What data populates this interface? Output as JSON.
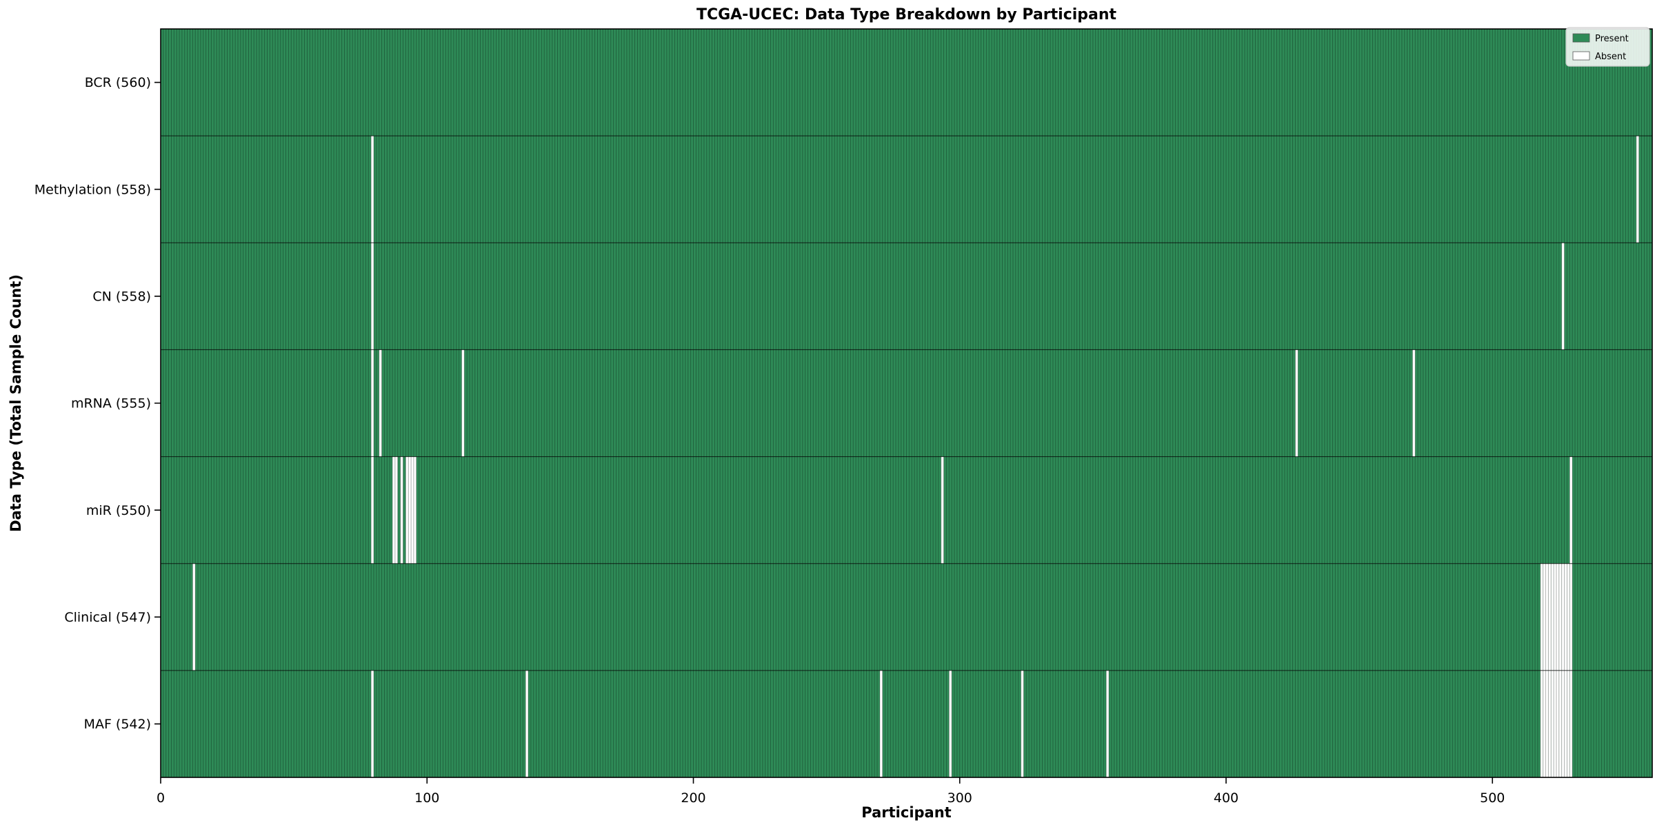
{
  "chart_data": {
    "type": "heatmap",
    "title": "TCGA-UCEC: Data Type Breakdown by Participant",
    "xlabel": "Participant",
    "ylabel": "Data Type (Total Sample Count)",
    "x_ticks": [
      0,
      100,
      200,
      300,
      400,
      500
    ],
    "xlim": [
      0,
      560
    ],
    "n_participants": 560,
    "grid": "per-cell vertical borders",
    "legend": {
      "position": "upper-right",
      "entries": [
        {
          "key": "present",
          "label": "Present",
          "color": "#2e8b57"
        },
        {
          "key": "absent",
          "label": "Absent",
          "color": "#ffffff"
        }
      ]
    },
    "colors": {
      "present": "#2e8b57",
      "absent": "#ffffff"
    },
    "rows": [
      {
        "key": "bcr",
        "label": "BCR (560)",
        "data_type": "BCR",
        "total_samples": 560,
        "absent_participants": []
      },
      {
        "key": "methylation",
        "label": "Methylation (558)",
        "data_type": "Methylation",
        "total_samples": 558,
        "absent_participants": [
          79,
          554
        ]
      },
      {
        "key": "cn",
        "label": "CN (558)",
        "data_type": "CN",
        "total_samples": 558,
        "absent_participants": [
          79,
          526
        ]
      },
      {
        "key": "mrna",
        "label": "mRNA (555)",
        "data_type": "mRNA",
        "total_samples": 555,
        "absent_participants": [
          79,
          82,
          113,
          426,
          470
        ]
      },
      {
        "key": "mir",
        "label": "miR (550)",
        "data_type": "miR",
        "total_samples": 550,
        "absent_participants": [
          79,
          87,
          88,
          90,
          92,
          93,
          94,
          95,
          293,
          529
        ]
      },
      {
        "key": "clinical",
        "label": "Clinical (547)",
        "data_type": "Clinical",
        "total_samples": 547,
        "absent_participants": [
          12,
          518,
          519,
          520,
          521,
          522,
          523,
          524,
          525,
          526,
          527,
          528,
          529
        ]
      },
      {
        "key": "maf",
        "label": "MAF (542)",
        "data_type": "MAF",
        "total_samples": 542,
        "absent_participants": [
          79,
          137,
          270,
          296,
          323,
          355,
          518,
          519,
          520,
          521,
          522,
          523,
          524,
          525,
          526,
          527,
          528,
          529
        ]
      }
    ]
  }
}
